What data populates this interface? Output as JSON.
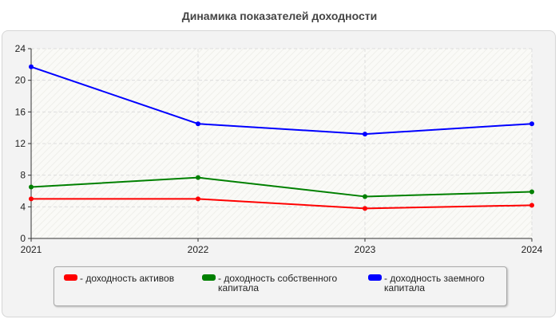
{
  "chart_data": {
    "type": "line",
    "title": "Динамика показателей доходности",
    "x": [
      "2021",
      "2022",
      "2023",
      "2024"
    ],
    "ylim": [
      0,
      24
    ],
    "yticks": [
      0,
      4,
      8,
      12,
      16,
      20,
      24
    ],
    "grid": true,
    "legend_position": "bottom",
    "series": [
      {
        "name": "- доходность активов",
        "color": "#ff0000",
        "values": [
          5.0,
          5.0,
          3.8,
          4.2
        ]
      },
      {
        "name": "- доходность собственного капитала",
        "color": "#008000",
        "values": [
          6.5,
          7.7,
          5.3,
          5.9
        ]
      },
      {
        "name": "- доходность заемного капитала",
        "color": "#0000ff",
        "values": [
          21.7,
          14.5,
          13.2,
          14.5
        ]
      }
    ]
  }
}
